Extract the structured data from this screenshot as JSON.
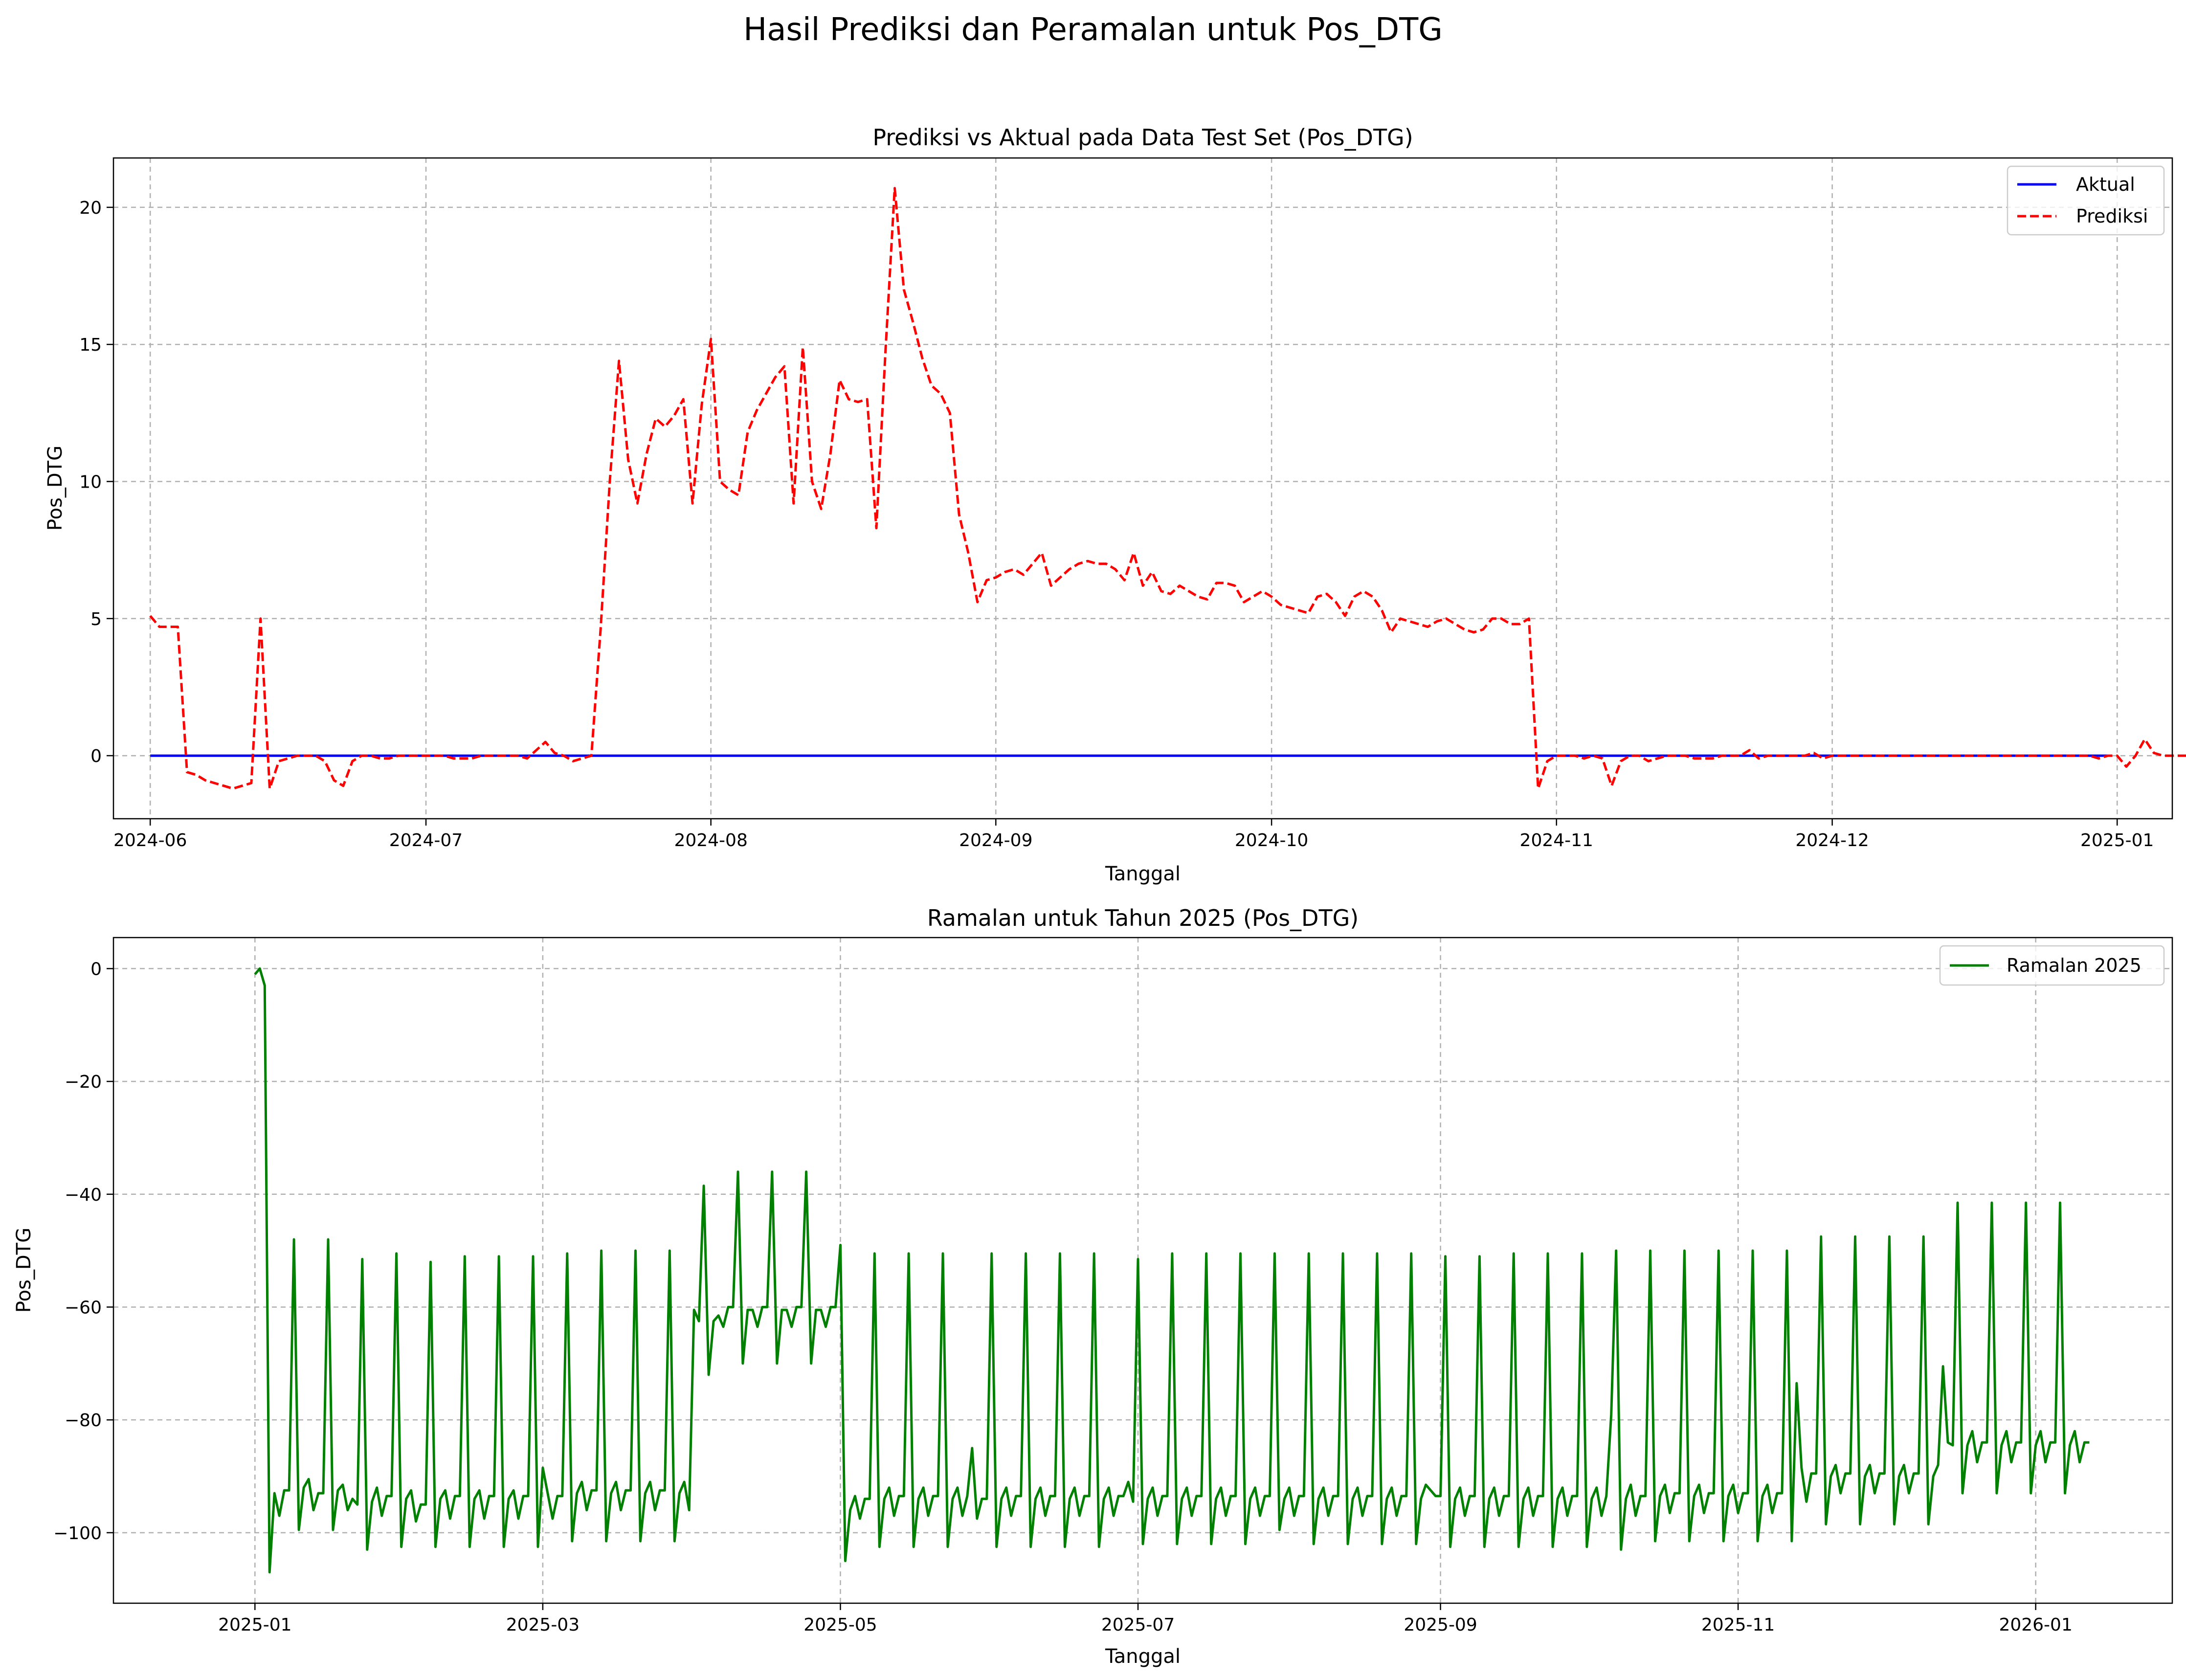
{
  "figure": {
    "suptitle": "Hasil Prediksi dan Peramalan untuk Pos_DTG"
  },
  "chart_data": [
    {
      "type": "line",
      "title": "Prediksi vs Aktual pada Data Test Set (Pos_DTG)",
      "xlabel": "Tanggal",
      "ylabel": "Pos_DTG",
      "x_domain": [
        "2024-05-28",
        "2025-01-07"
      ],
      "ylim": [
        -2.3,
        21.8
      ],
      "x_ticks": [
        "2024-06",
        "2024-07",
        "2024-08",
        "2024-09",
        "2024-10",
        "2024-11",
        "2024-12",
        "2025-01"
      ],
      "y_ticks": [
        0,
        5,
        10,
        15,
        20
      ],
      "grid": true,
      "legend": "top-right",
      "series": [
        {
          "name": "Aktual",
          "color": "#0000ff",
          "style": "solid",
          "start": "2024-06-01",
          "end": "2024-12-31",
          "values": [
            0,
            0
          ]
        },
        {
          "name": "Prediksi",
          "color": "#ff0000",
          "style": "dashed",
          "start": "2024-06-01",
          "values": [
            5.1,
            4.7,
            4.7,
            4.7,
            -0.6,
            -0.7,
            -0.9,
            -1.0,
            -1.1,
            -1.2,
            -1.1,
            -1.0,
            5.0,
            -1.2,
            -0.2,
            -0.1,
            0.0,
            0.0,
            0.0,
            -0.2,
            -0.9,
            -1.1,
            -0.2,
            0.0,
            0.0,
            -0.1,
            -0.1,
            0.0,
            0.0,
            0.0,
            0.0,
            0.0,
            0.0,
            -0.1,
            -0.1,
            -0.1,
            0.0,
            0.0,
            0.0,
            0.0,
            0.0,
            -0.1,
            0.2,
            0.5,
            0.1,
            0.0,
            -0.2,
            -0.1,
            0.0,
            4.6,
            10.0,
            14.4,
            10.8,
            9.2,
            11.0,
            12.3,
            12.0,
            12.4,
            13.0,
            9.2,
            12.8,
            15.2,
            10.0,
            9.7,
            9.5,
            11.8,
            12.6,
            13.2,
            13.8,
            14.2,
            9.2,
            14.9,
            10.0,
            9.0,
            11.0,
            13.7,
            13.0,
            12.9,
            13.0,
            8.3,
            14.8,
            20.7,
            17.0,
            15.8,
            14.5,
            13.5,
            13.2,
            12.5,
            8.8,
            7.4,
            5.6,
            6.4,
            6.5,
            6.7,
            6.8,
            6.6,
            7.0,
            7.4,
            6.2,
            6.5,
            6.8,
            7.0,
            7.1,
            7.0,
            7.0,
            6.8,
            6.4,
            7.4,
            6.2,
            6.7,
            6.0,
            5.9,
            6.2,
            6.0,
            5.8,
            5.7,
            6.3,
            6.3,
            6.2,
            5.6,
            5.8,
            6.0,
            5.8,
            5.5,
            5.4,
            5.3,
            5.2,
            5.8,
            5.9,
            5.6,
            5.1,
            5.8,
            6.0,
            5.8,
            5.3,
            4.5,
            5.0,
            4.9,
            4.8,
            4.7,
            4.9,
            5.0,
            4.8,
            4.6,
            4.5,
            4.6,
            5.0,
            5.0,
            4.8,
            4.8,
            5.0,
            -1.2,
            -0.2,
            0.0,
            0.0,
            0.0,
            -0.1,
            0.0,
            -0.1,
            -1.1,
            -0.2,
            0.0,
            0.0,
            -0.2,
            -0.1,
            0.0,
            0.0,
            0.0,
            -0.1,
            -0.1,
            -0.1,
            0.0,
            0.0,
            0.0,
            0.2,
            -0.1,
            0.0,
            0.0,
            0.0,
            0.0,
            0.0,
            0.1,
            -0.1,
            0.0,
            0.0,
            0.0,
            0.0,
            0.0,
            0.0,
            0.0,
            0.0,
            0.0,
            0.0,
            0.0,
            0.0,
            0.0,
            0.0,
            0.0,
            0.0,
            0.0,
            0.0,
            0.0,
            0.0,
            0.0,
            0.0,
            0.0,
            0.0,
            0.0,
            0.0,
            0.0,
            0.0,
            0.0,
            -0.1,
            0.0,
            0.0,
            -0.4,
            0.0,
            0.6,
            0.1,
            0.0,
            0.0,
            0.0,
            0.0,
            0.0,
            0.0,
            0.0,
            0.0,
            0.0,
            0.0,
            0.1,
            0.0,
            0.0,
            0.0,
            0.0,
            0.0,
            0.0,
            0.0,
            0.0,
            0.0,
            0.0,
            0.0,
            0.0,
            0.0,
            0.0,
            0.0,
            0.0,
            0.1,
            0.0,
            0.0,
            0.0,
            0.0,
            0.0,
            0.0,
            0.0,
            0.0,
            0.0,
            0.1,
            0.0,
            0.0,
            0.0,
            0.0,
            0.0,
            0.0,
            0.0,
            0.0,
            0.0,
            0.0,
            -0.1,
            0.0,
            0.0,
            0.0,
            0.0,
            0.0,
            0.1,
            0.0,
            0.0,
            0.1,
            0.1,
            0.1,
            0.2,
            0.1,
            0.0,
            0.0,
            0.0,
            0.1,
            0.1,
            0.1,
            0.0,
            0.1,
            0.2,
            0.1,
            0.1,
            0.3,
            0.2,
            0.1,
            0.1,
            0.0,
            0.1,
            0.1,
            0.1,
            0.2,
            0.1,
            0.2,
            0.2,
            0.3,
            0.2,
            0.1,
            0.1,
            0.0,
            0.1,
            0.1,
            0.1,
            0.2,
            0.1,
            0.2,
            0.2,
            0.3,
            0.2,
            0.1,
            0.2
          ]
        }
      ]
    },
    {
      "type": "line",
      "title": "Ramalan untuk Tahun 2025 (Pos_DTG)",
      "xlabel": "Tanggal",
      "ylabel": "Pos_DTG",
      "x_domain": [
        "2024-12-03",
        "2026-01-29"
      ],
      "ylim": [
        -112.5,
        5.5
      ],
      "x_ticks": [
        "2025-01",
        "2025-03",
        "2025-05",
        "2025-07",
        "2025-09",
        "2025-11",
        "2026-01"
      ],
      "y_ticks": [
        0,
        -20,
        -40,
        -60,
        -80,
        -100
      ],
      "grid": true,
      "legend": "top-right",
      "series": [
        {
          "name": "Ramalan 2025",
          "color": "#008000",
          "style": "solid",
          "start": "2025-01-01",
          "values": [
            -1.0,
            0.0,
            -3.0,
            -107.0,
            -93.0,
            -97.0,
            -92.5,
            -92.5,
            -48.0,
            -99.5,
            -92.0,
            -90.5,
            -96.0,
            -93.0,
            -93.0,
            -48.0,
            -99.5,
            -92.5,
            -91.5,
            -96.0,
            -94.0,
            -95.0,
            -51.5,
            -103.0,
            -94.5,
            -92.0,
            -97.0,
            -93.5,
            -93.5,
            -50.5,
            -102.5,
            -94.0,
            -92.5,
            -98.0,
            -95.0,
            -95.0,
            -52.0,
            -102.5,
            -94.0,
            -92.5,
            -97.5,
            -93.5,
            -93.5,
            -51.0,
            -102.5,
            -94.0,
            -92.5,
            -97.5,
            -93.5,
            -93.5,
            -51.0,
            -102.5,
            -94.0,
            -92.5,
            -97.5,
            -93.5,
            -93.5,
            -51.0,
            -102.5,
            -88.5,
            -93.0,
            -97.5,
            -93.5,
            -93.5,
            -50.5,
            -101.5,
            -93.0,
            -91.0,
            -96.0,
            -92.5,
            -92.5,
            -50.0,
            -101.5,
            -93.0,
            -91.0,
            -96.0,
            -92.5,
            -92.5,
            -50.0,
            -101.5,
            -93.0,
            -91.0,
            -96.0,
            -92.5,
            -92.5,
            -50.0,
            -101.5,
            -93.0,
            -91.0,
            -96.0,
            -60.5,
            -62.5,
            -38.5,
            -72.0,
            -62.5,
            -61.5,
            -63.5,
            -60.0,
            -60.0,
            -36.0,
            -70.0,
            -60.5,
            -60.5,
            -63.5,
            -60.0,
            -60.0,
            -36.0,
            -70.0,
            -60.5,
            -60.5,
            -63.5,
            -60.0,
            -60.0,
            -36.0,
            -70.0,
            -60.5,
            -60.5,
            -63.5,
            -60.0,
            -60.0,
            -49.0,
            -105.0,
            -96.0,
            -93.5,
            -97.5,
            -94.0,
            -94.0,
            -50.5,
            -102.5,
            -94.0,
            -92.0,
            -97.0,
            -93.5,
            -93.5,
            -50.5,
            -102.5,
            -94.0,
            -92.0,
            -97.0,
            -93.5,
            -93.5,
            -50.5,
            -102.5,
            -94.0,
            -92.0,
            -97.0,
            -93.5,
            -85.0,
            -97.5,
            -94.0,
            -94.0,
            -50.5,
            -102.5,
            -94.0,
            -92.0,
            -97.0,
            -93.5,
            -93.5,
            -50.5,
            -102.5,
            -94.0,
            -92.0,
            -97.0,
            -93.5,
            -93.5,
            -50.5,
            -102.5,
            -94.0,
            -92.0,
            -97.0,
            -93.5,
            -93.5,
            -50.5,
            -102.5,
            -94.0,
            -92.0,
            -97.0,
            -93.5,
            -93.5,
            -91.0,
            -94.5,
            -51.5,
            -102.0,
            -94.0,
            -92.0,
            -97.0,
            -93.5,
            -93.5,
            -50.5,
            -102.0,
            -94.0,
            -92.0,
            -97.0,
            -93.5,
            -93.5,
            -50.5,
            -102.0,
            -94.0,
            -92.0,
            -97.0,
            -93.5,
            -93.5,
            -50.5,
            -102.0,
            -94.0,
            -92.0,
            -97.0,
            -93.5,
            -93.5,
            -50.5,
            -99.5,
            -94.0,
            -92.0,
            -97.0,
            -93.5,
            -93.5,
            -50.5,
            -102.0,
            -94.0,
            -92.0,
            -97.0,
            -93.5,
            -93.5,
            -50.5,
            -102.0,
            -94.0,
            -92.0,
            -97.0,
            -93.5,
            -93.5,
            -50.5,
            -102.0,
            -94.0,
            -92.0,
            -97.0,
            -93.5,
            -93.5,
            -50.5,
            -102.0,
            -94.0,
            -91.5,
            -92.5,
            -93.5,
            -93.5,
            -51.0,
            -102.5,
            -94.0,
            -92.0,
            -97.0,
            -93.5,
            -93.5,
            -51.0,
            -102.5,
            -94.0,
            -92.0,
            -97.0,
            -93.5,
            -93.5,
            -50.5,
            -102.5,
            -94.0,
            -92.0,
            -97.0,
            -93.5,
            -93.5,
            -50.5,
            -102.5,
            -94.0,
            -92.0,
            -97.0,
            -93.5,
            -93.5,
            -50.5,
            -102.5,
            -94.0,
            -92.0,
            -97.0,
            -93.5,
            -79.0,
            -50.0,
            -103.0,
            -94.0,
            -91.5,
            -97.0,
            -93.5,
            -93.5,
            -50.0,
            -101.5,
            -93.5,
            -91.5,
            -96.5,
            -93.0,
            -93.0,
            -50.0,
            -101.5,
            -93.5,
            -91.5,
            -96.5,
            -93.0,
            -93.0,
            -50.0,
            -101.5,
            -93.5,
            -91.5,
            -96.5,
            -93.0,
            -93.0,
            -50.0,
            -101.5,
            -93.5,
            -91.5,
            -96.5,
            -93.0,
            -93.0,
            -50.0,
            -101.5,
            -73.5,
            -88.5,
            -94.5,
            -89.5,
            -89.5,
            -47.5,
            -98.5,
            -90.0,
            -88.0,
            -93.0,
            -89.5,
            -89.5,
            -47.5,
            -98.5,
            -90.0,
            -88.0,
            -93.0,
            -89.5,
            -89.5,
            -47.5,
            -98.5,
            -90.0,
            -88.0,
            -93.0,
            -89.5,
            -89.5,
            -47.5,
            -98.5,
            -90.0,
            -88.0,
            -70.5,
            -84.0,
            -84.5,
            -41.5,
            -93.0,
            -84.5,
            -82.0,
            -87.5,
            -84.0,
            -84.0,
            -41.5,
            -93.0,
            -84.5,
            -82.0,
            -87.5,
            -84.0,
            -84.0,
            -41.5,
            -93.0,
            -84.5,
            -82.0,
            -87.5,
            -84.0,
            -84.0,
            -41.5,
            -93.0,
            -84.5,
            -82.0,
            -87.5,
            -84.0,
            -84.0
          ]
        }
      ]
    }
  ]
}
